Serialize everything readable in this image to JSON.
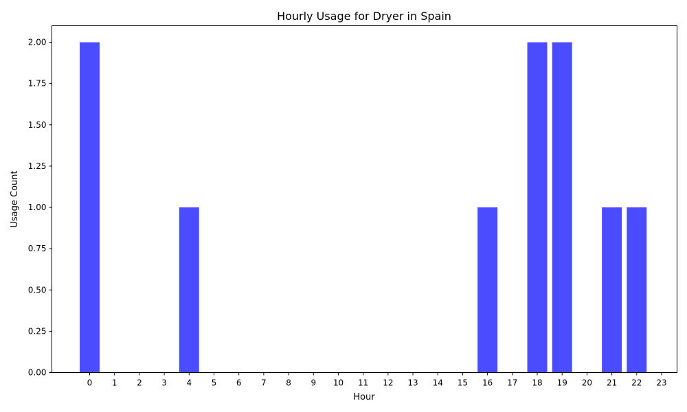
{
  "chart_data": {
    "type": "bar",
    "title": "Hourly Usage for Dryer in Spain",
    "xlabel": "Hour",
    "ylabel": "Usage Count",
    "categories": [
      "0",
      "1",
      "2",
      "3",
      "4",
      "5",
      "6",
      "7",
      "8",
      "9",
      "10",
      "11",
      "12",
      "13",
      "14",
      "15",
      "16",
      "17",
      "18",
      "19",
      "20",
      "21",
      "22",
      "23"
    ],
    "values": [
      2,
      0,
      0,
      0,
      1,
      0,
      0,
      0,
      0,
      0,
      0,
      0,
      0,
      0,
      0,
      0,
      1,
      0,
      2,
      2,
      0,
      1,
      1,
      0
    ],
    "ylim": [
      0,
      2.1
    ],
    "yticks": [
      "0.00",
      "0.25",
      "0.50",
      "0.75",
      "1.00",
      "1.25",
      "1.50",
      "1.75",
      "2.00"
    ],
    "bar_color": "#4b4bff",
    "grid": false,
    "legend": "none"
  }
}
